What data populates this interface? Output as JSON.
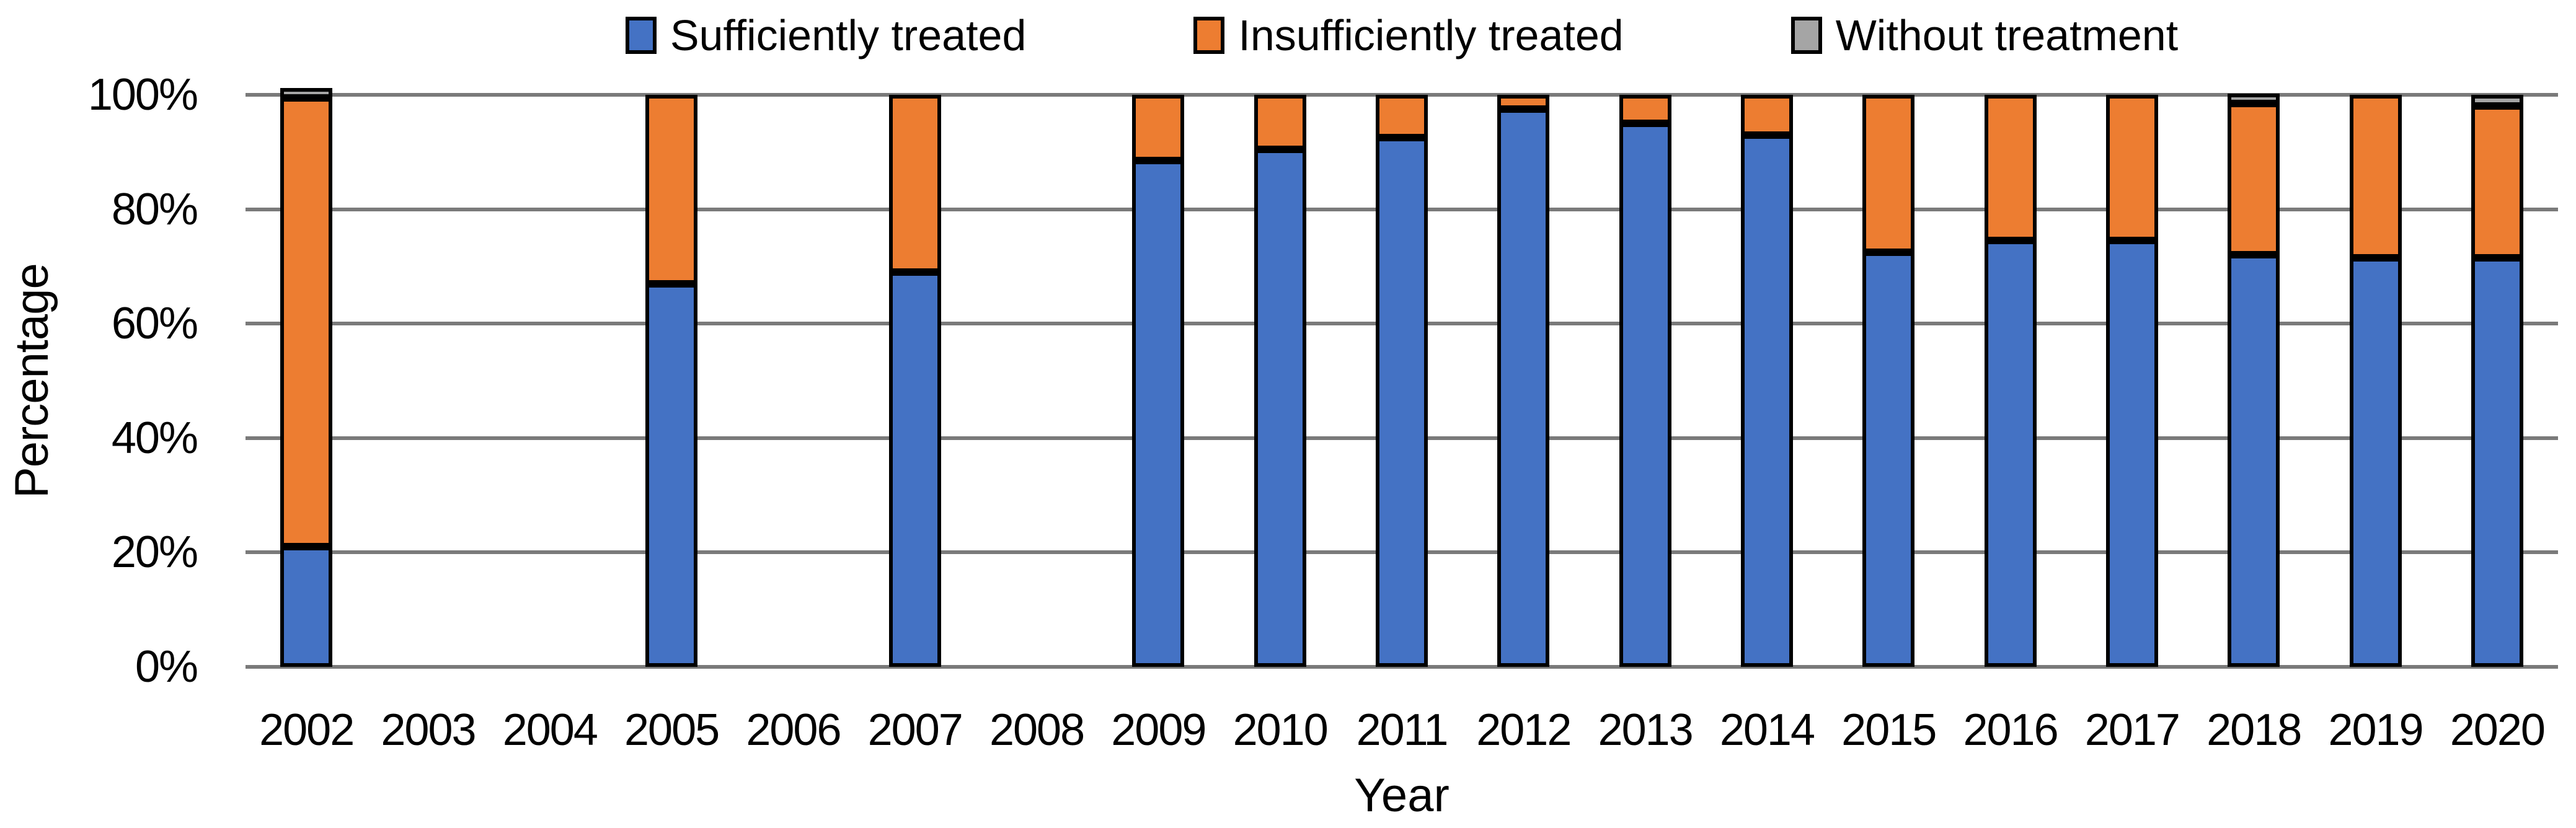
{
  "chart_data": {
    "type": "bar",
    "stacked": true,
    "units": "percent",
    "title": "",
    "xlabel": "Year",
    "ylabel": "Percentage",
    "ylim": [
      0,
      100
    ],
    "yticks": [
      0,
      20,
      40,
      60,
      80,
      100
    ],
    "ytick_labels": [
      "0%",
      "20%",
      "40%",
      "60%",
      "80%",
      "100%"
    ],
    "grid": true,
    "gridline_color": "#7a7a7a",
    "bar_border_color": "#000000",
    "legend_position": "top",
    "categories": [
      "2002",
      "2003",
      "2004",
      "2005",
      "2006",
      "2007",
      "2008",
      "2009",
      "2010",
      "2011",
      "2012",
      "2013",
      "2014",
      "2015",
      "2016",
      "2017",
      "2018",
      "2019",
      "2020"
    ],
    "series": [
      {
        "name": "Sufficiently treated",
        "color": "#4472C4",
        "values": [
          21,
          null,
          null,
          67,
          null,
          69,
          null,
          88.5,
          90.5,
          92.5,
          97.5,
          95,
          93,
          72.5,
          74.5,
          74.5,
          72,
          71.5,
          71.5
        ]
      },
      {
        "name": "Insufficiently treated",
        "color": "#ED7D31",
        "values": [
          78.5,
          null,
          null,
          33,
          null,
          31,
          null,
          11.5,
          9.5,
          7.5,
          2.5,
          5,
          7,
          27.5,
          25.5,
          25.5,
          26.5,
          28.5,
          26.5
        ]
      },
      {
        "name": "Without treatment",
        "color": "#A5A5A5",
        "values": [
          0.5,
          null,
          null,
          0,
          null,
          0,
          null,
          0,
          0,
          0,
          0,
          0,
          0,
          0,
          0,
          0,
          1.5,
          0,
          2
        ]
      }
    ]
  }
}
